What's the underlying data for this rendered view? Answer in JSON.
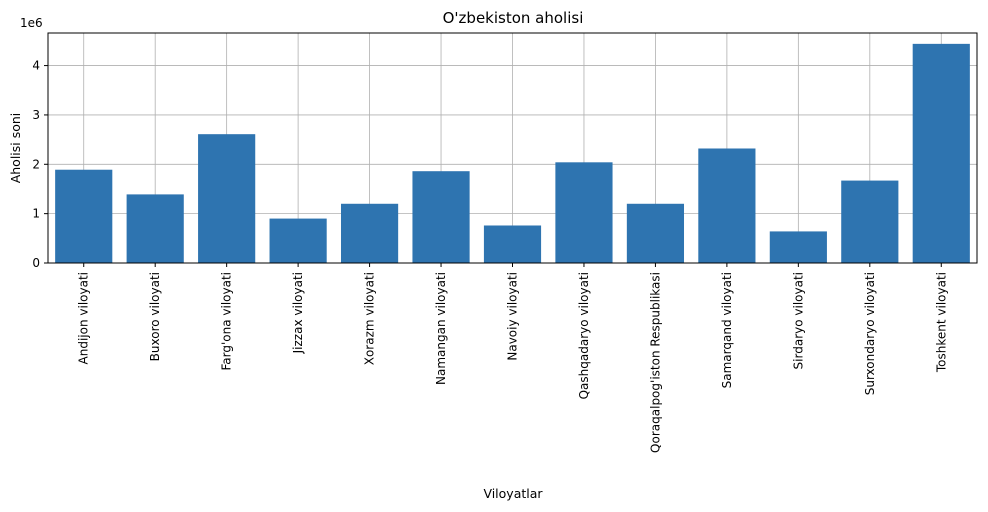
{
  "chart_data": {
    "type": "bar",
    "title": "O'zbekiston aholisi",
    "xlabel": "Viloyatlar",
    "ylabel": "Aholisi soni",
    "y_scale_label": "1e6",
    "categories": [
      "Andijon viloyati",
      "Buxoro viloyati",
      "Farg'ona viloyati",
      "Jizzax viloyati",
      "Xorazm viloyati",
      "Namangan viloyati",
      "Navoiy viloyati",
      "Qashqadaryo viloyati",
      "Qoraqalpog'iston Respublikasi",
      "Samarqand viloyati",
      "Sirdaryo viloyati",
      "Surxondaryo viloyati",
      "Toshkent viloyati"
    ],
    "values": [
      1890000,
      1390000,
      2610000,
      900000,
      1200000,
      1860000,
      760000,
      2040000,
      1200000,
      2320000,
      640000,
      1670000,
      4440000
    ],
    "ylim": [
      0,
      4660000
    ],
    "yticks": [
      0,
      1,
      2,
      3,
      4
    ],
    "grid": true,
    "bar_color": "#2e74b0"
  }
}
